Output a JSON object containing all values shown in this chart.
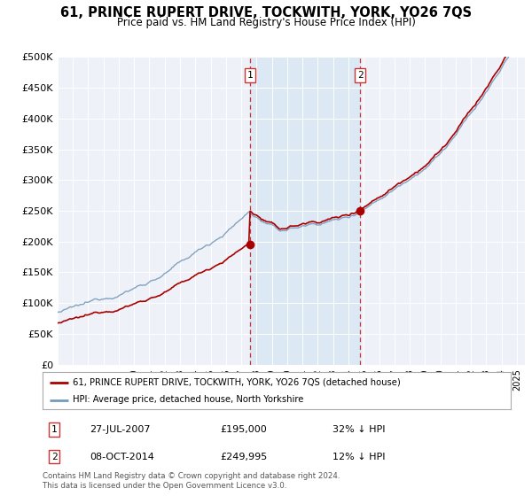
{
  "title": "61, PRINCE RUPERT DRIVE, TOCKWITH, YORK, YO26 7QS",
  "subtitle": "Price paid vs. HM Land Registry's House Price Index (HPI)",
  "ylabel_ticks": [
    "£0",
    "£50K",
    "£100K",
    "£150K",
    "£200K",
    "£250K",
    "£300K",
    "£350K",
    "£400K",
    "£450K",
    "£500K"
  ],
  "ytick_values": [
    0,
    50000,
    100000,
    150000,
    200000,
    250000,
    300000,
    350000,
    400000,
    450000,
    500000
  ],
  "ylim": [
    0,
    500000
  ],
  "xlim_start": 1995.0,
  "xlim_end": 2025.5,
  "hpi_color": "#7799bb",
  "price_color": "#aa0000",
  "sale1_date": 2007.57,
  "sale1_price": 195000,
  "sale2_date": 2014.77,
  "sale2_price": 249995,
  "vline_color": "#cc3333",
  "shade_color": "#dde8f5",
  "legend_line1": "61, PRINCE RUPERT DRIVE, TOCKWITH, YORK, YO26 7QS (detached house)",
  "legend_line2": "HPI: Average price, detached house, North Yorkshire",
  "annotation1_label": "1",
  "annotation1_date": "27-JUL-2007",
  "annotation1_price": "£195,000",
  "annotation1_hpi": "32% ↓ HPI",
  "annotation2_label": "2",
  "annotation2_date": "08-OCT-2014",
  "annotation2_price": "£249,995",
  "annotation2_hpi": "12% ↓ HPI",
  "footer": "Contains HM Land Registry data © Crown copyright and database right 2024.\nThis data is licensed under the Open Government Licence v3.0.",
  "background_color": "#ffffff",
  "plot_bg_color": "#eef2f8"
}
